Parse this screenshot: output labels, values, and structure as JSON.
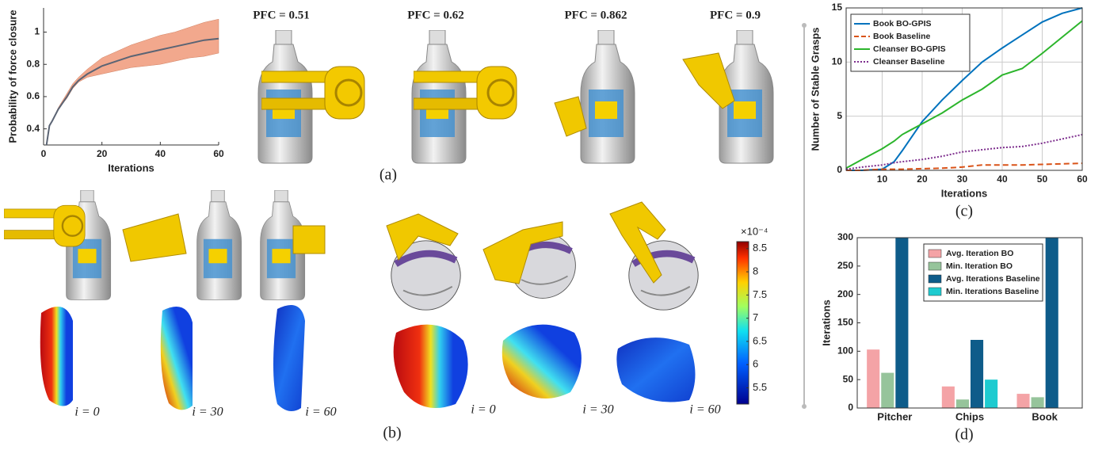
{
  "chart_data": [
    {
      "type": "band-line",
      "xlabel": "Iterations",
      "ylabel": "Probability of force closure",
      "x": [
        1,
        2,
        3,
        5,
        8,
        10,
        12,
        15,
        20,
        25,
        30,
        35,
        40,
        45,
        50,
        55,
        60
      ],
      "values": [
        0.3,
        0.42,
        0.45,
        0.52,
        0.6,
        0.66,
        0.7,
        0.74,
        0.79,
        0.82,
        0.85,
        0.87,
        0.89,
        0.91,
        0.93,
        0.95,
        0.96
      ],
      "color": "#5b6474",
      "band": {
        "color": "#f2a88d",
        "lower": [
          0.3,
          0.42,
          0.45,
          0.52,
          0.59,
          0.65,
          0.69,
          0.72,
          0.74,
          0.76,
          0.78,
          0.79,
          0.8,
          0.82,
          0.84,
          0.85,
          0.87
        ],
        "upper": [
          0.3,
          0.42,
          0.45,
          0.53,
          0.62,
          0.68,
          0.72,
          0.77,
          0.84,
          0.88,
          0.92,
          0.95,
          0.98,
          1.0,
          1.03,
          1.06,
          1.08
        ]
      },
      "xlim": [
        0,
        60
      ],
      "xticks": [
        0,
        20,
        40,
        60
      ],
      "ylim": [
        0.3,
        1.15
      ],
      "yticks": [
        0.4,
        0.6,
        0.8,
        1
      ],
      "grid": false
    },
    {
      "type": "line",
      "xlabel": "Iterations",
      "ylabel": "Number of Stable Grasps",
      "x": [
        1,
        5,
        10,
        13,
        15,
        20,
        25,
        30,
        35,
        40,
        45,
        50,
        55,
        60
      ],
      "series": [
        {
          "name": "Book BO-GPIS",
          "color": "#0072bd",
          "dash": "solid",
          "values": [
            0,
            0,
            0.1,
            0.8,
            1.8,
            4.5,
            6.5,
            8.3,
            10,
            11.3,
            12.5,
            13.7,
            14.5,
            15
          ]
        },
        {
          "name": "Book Baseline",
          "color": "#d95319",
          "dash": "dashed",
          "values": [
            0,
            0,
            0.1,
            0.1,
            0.1,
            0.15,
            0.2,
            0.3,
            0.5,
            0.5,
            0.5,
            0.55,
            0.6,
            0.65
          ]
        },
        {
          "name": "Cleanser BO-GPIS",
          "color": "#2cb52c",
          "dash": "solid",
          "values": [
            0.2,
            1,
            2,
            2.7,
            3.3,
            4.3,
            5.3,
            6.5,
            7.5,
            8.8,
            9.4,
            10.8,
            12.3,
            13.8
          ]
        },
        {
          "name": "Cleanser Baseline",
          "color": "#7e2f8e",
          "dash": "dotted",
          "values": [
            0.1,
            0.3,
            0.5,
            0.7,
            0.8,
            1,
            1.3,
            1.7,
            1.9,
            2.1,
            2.2,
            2.5,
            2.9,
            3.3
          ]
        }
      ],
      "xlim": [
        1,
        60
      ],
      "xticks": [
        10,
        20,
        30,
        40,
        50,
        60
      ],
      "ylim": [
        0,
        15
      ],
      "yticks": [
        0,
        5,
        10,
        15
      ],
      "grid": true,
      "legend": "top-left"
    },
    {
      "type": "bar",
      "ylabel": "Iterations",
      "categories": [
        "Pitcher",
        "Chips",
        "Book"
      ],
      "series": [
        {
          "name": "Avg. Iteration BO",
          "color": "#f4a3a6",
          "values": [
            103,
            38,
            25
          ]
        },
        {
          "name": "Min. Iteration BO",
          "color": "#96c49b",
          "values": [
            62,
            15,
            19
          ]
        },
        {
          "name": "Avg. Iterations Baseline",
          "color": "#0e5c8a",
          "values": [
            300,
            120,
            300
          ]
        },
        {
          "name": "Min. Iterations Baseline",
          "color": "#1ecbd0",
          "values": [
            null,
            50,
            null
          ]
        }
      ],
      "ylim": [
        0,
        300
      ],
      "yticks": [
        0,
        50,
        100,
        150,
        200,
        250,
        300
      ],
      "grid": false,
      "legend": "top-right"
    },
    {
      "type": "colorbar",
      "scale_label": "×10⁻⁴",
      "ylim": [
        5.15,
        8.65
      ],
      "yticks": [
        5.5,
        6,
        6.5,
        7,
        7.5,
        8,
        8.5
      ]
    }
  ],
  "panels": {
    "a": "(a)",
    "b": "(b)",
    "c": "(c)",
    "d": "(d)",
    "pfc": [
      "PFC = 0.51",
      "PFC = 0.62",
      "PFC = 0.862",
      "PFC = 0.9"
    ],
    "iters": [
      "i = 0",
      "i = 30",
      "i = 60",
      "i = 0",
      "i = 30",
      "i = 60"
    ]
  }
}
